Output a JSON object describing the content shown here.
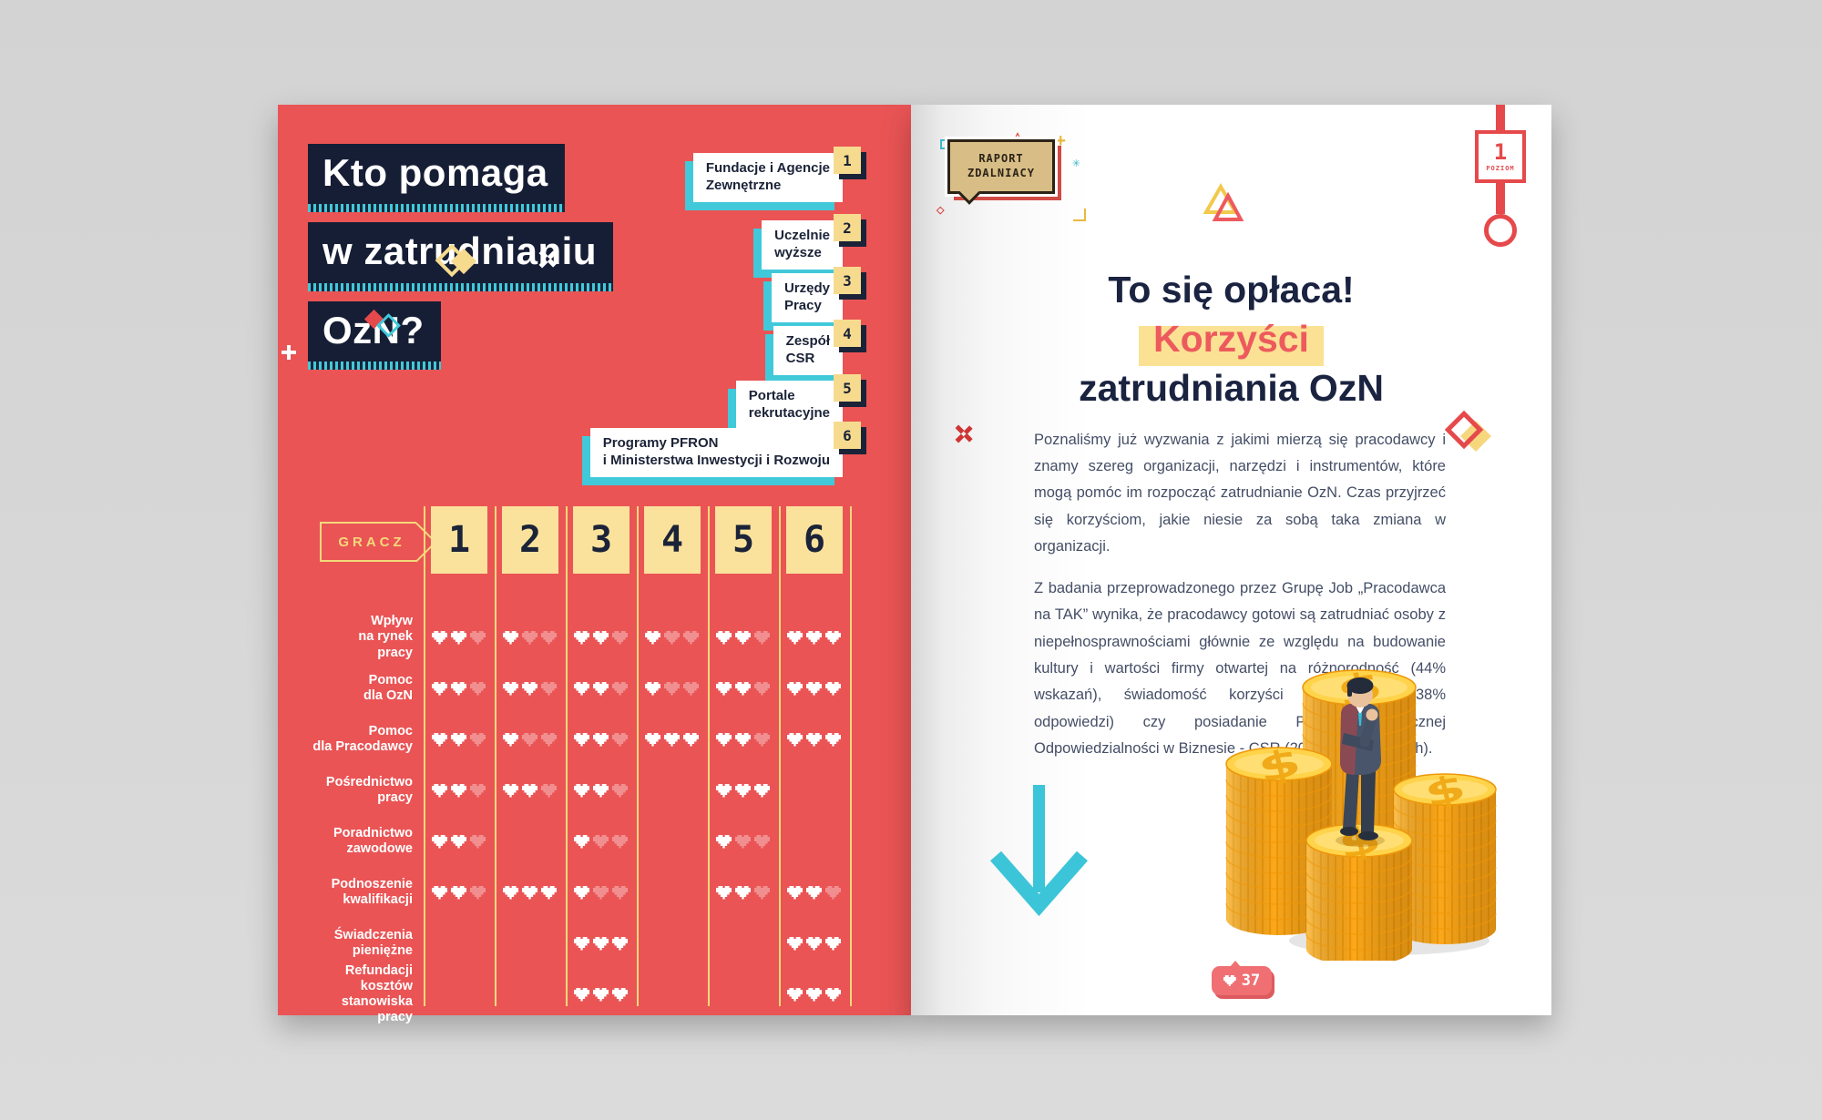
{
  "palette": {
    "page_red": "#ea5455",
    "navy": "#161e36",
    "teal": "#41c9da",
    "line_yellow": "#f3d97b",
    "square_yellow": "#fae29c",
    "tab_yellow": "#f6db8e",
    "accent_red": "#e6494b",
    "highlight_yellow": "#fbe193",
    "title_navy": "#1a2340",
    "coin_gold": "#fba81b",
    "badge_pink": "#ef6f72"
  },
  "icons": {
    "heart": "pixel-heart",
    "x_sparkle": "pixel-x",
    "diamond": "rotated-square",
    "plus": "plus-cross",
    "triangle": "outlined-triangle",
    "arrow_down": "chevron-arrow",
    "asterisk": "✳",
    "bracket": "corner-bracket"
  },
  "left_page": {
    "title_lines": [
      "Kto pomaga",
      "w zatrudnianiu",
      "OzN?"
    ],
    "help_boxes": [
      {
        "number": "1",
        "lines": [
          "Fundacje i Agencje",
          "Zewnętrzne"
        ]
      },
      {
        "number": "2",
        "lines": [
          "Uczelnie",
          "wyższe"
        ]
      },
      {
        "number": "3",
        "lines": [
          "Urzędy",
          "Pracy"
        ]
      },
      {
        "number": "4",
        "lines": [
          "Zespół",
          "CSR"
        ]
      },
      {
        "number": "5",
        "lines": [
          "Portale",
          "rekrutacyjne"
        ]
      },
      {
        "number": "6",
        "lines": [
          "Programy PFRON",
          "i Ministerstwa Inwestycji i Rozwoju"
        ]
      }
    ],
    "table": {
      "player_label": "GRACZ",
      "columns": [
        "1",
        "2",
        "3",
        "4",
        "5",
        "6"
      ],
      "max_hearts": 3,
      "rows": [
        {
          "label_lines": [
            "Wpływ",
            "na rynek",
            "pracy"
          ],
          "hearts": [
            2,
            1,
            2,
            1,
            2,
            3
          ]
        },
        {
          "label_lines": [
            "Pomoc",
            "dla OzN"
          ],
          "hearts": [
            2,
            2,
            2,
            1,
            2,
            3
          ]
        },
        {
          "label_lines": [
            "Pomoc",
            "dla Pracodawcy"
          ],
          "hearts": [
            2,
            1,
            2,
            3,
            2,
            3
          ]
        },
        {
          "label_lines": [
            "Pośrednictwo",
            "pracy"
          ],
          "hearts": [
            2,
            2,
            2,
            0,
            3,
            0
          ]
        },
        {
          "label_lines": [
            "Poradnictwo",
            "zawodowe"
          ],
          "hearts": [
            2,
            0,
            1,
            0,
            1,
            0
          ]
        },
        {
          "label_lines": [
            "Podnoszenie",
            "kwalifikacji"
          ],
          "hearts": [
            2,
            3,
            1,
            0,
            2,
            2
          ]
        },
        {
          "label_lines": [
            "Świadczenia",
            "pieniężne"
          ],
          "hearts": [
            0,
            0,
            3,
            0,
            0,
            3
          ]
        },
        {
          "label_lines": [
            "Refundacji",
            "kosztów",
            "stanowiska",
            "pracy"
          ],
          "hearts": [
            0,
            0,
            3,
            0,
            0,
            3
          ]
        }
      ]
    }
  },
  "right_page": {
    "logo": {
      "line1": "RAPORT",
      "line2": "ZDALNIACY"
    },
    "level_marker": {
      "number": "1",
      "label": "POZIOM"
    },
    "title": {
      "line1": "To się opłaca!",
      "highlight": "Korzyści",
      "line3": "zatrudniania OzN"
    },
    "paragraphs": [
      "Poznaliśmy już wyzwania z jakimi mierzą się pracodawcy i znamy szereg organizacji, narzędzi i instrumentów, które mogą pomóc im rozpocząć zatrudnianie OzN. Czas przyjrzeć się korzyściom, jakie niesie za sobą taka zmiana w organizacji.",
      "Z badania przeprowadzonego przez Grupę Job „Pracodawca na TAK” wynika, że pracodawcy gotowi są zatrudniać osoby z niepełnosprawnościami głównie ze względu na budowanie kultury i wartości firmy otwartej na różnorodność (44% wskazań), świadomość korzyści finansowych (38% odpowiedzi) czy posiadanie Polityki Społecznej Odpowiedzialności w Biznesie - CSR (20% ankietowanych)."
    ],
    "page_number": "37",
    "illustration": "businessman-on-coin-stacks"
  }
}
